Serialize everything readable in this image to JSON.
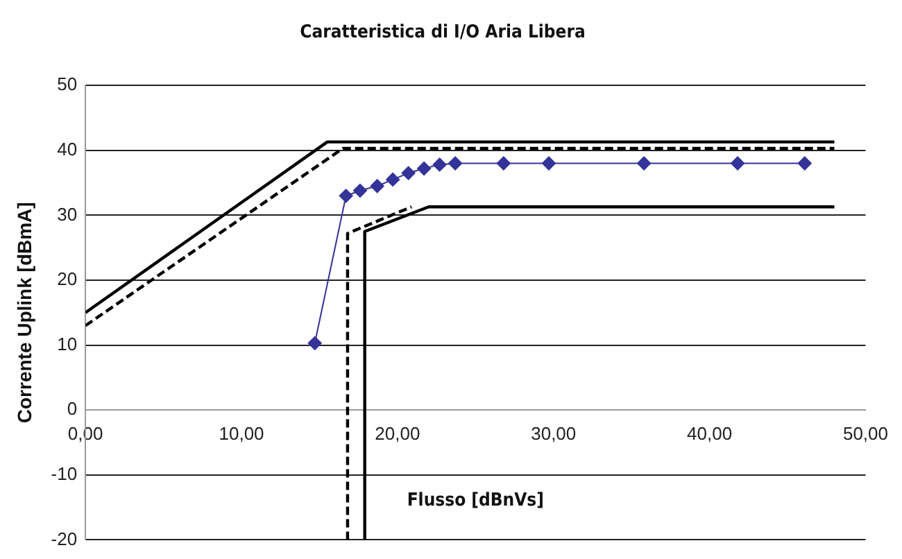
{
  "chart_data": {
    "type": "line",
    "title": "Caratteristica di I/O Aria Libera",
    "xlabel": "Flusso [dBnVs]",
    "ylabel": "Corrente Uplink [dBmA]",
    "xlim": [
      0,
      50
    ],
    "xticks": [
      {
        "value": 0,
        "label": "0,00"
      },
      {
        "value": 10,
        "label": "10,00"
      },
      {
        "value": 20,
        "label": "20,00"
      },
      {
        "value": 30,
        "label": "30,00"
      },
      {
        "value": 40,
        "label": "40,00"
      },
      {
        "value": 50,
        "label": "50,00"
      }
    ],
    "ylim": [
      -20,
      50
    ],
    "yticks": [
      -20,
      -10,
      0,
      10,
      20,
      30,
      40,
      50
    ],
    "grid": "y",
    "legend": false,
    "series": [
      {
        "color": "#333399",
        "marker": "diamond",
        "line_style": "solid",
        "x": [
          14.7,
          16.7,
          17.6,
          18.7,
          19.7,
          20.7,
          21.7,
          22.7,
          23.7,
          26.8,
          29.7,
          35.8,
          41.8,
          46.1
        ],
        "values": [
          10.3,
          33,
          33.8,
          34.5,
          35.5,
          36.5,
          37.2,
          37.8,
          38,
          38,
          38,
          38,
          38,
          38
        ]
      },
      {
        "color": "#000000",
        "marker": "none",
        "line_style": "solid",
        "x": [
          0,
          15.5,
          48
        ],
        "values": [
          15,
          41.3,
          41.3
        ]
      },
      {
        "color": "#000000",
        "marker": "none",
        "line_style": "dashed",
        "x": [
          0,
          16.5,
          48
        ],
        "values": [
          13,
          40.3,
          40.3
        ]
      },
      {
        "color": "#000000",
        "marker": "none",
        "line_style": "solid",
        "x": [
          17.9,
          17.9,
          22,
          48
        ],
        "values": [
          -20,
          27.5,
          31.3,
          31.3
        ]
      },
      {
        "color": "#000000",
        "marker": "none",
        "line_style": "dashed",
        "x": [
          16.8,
          16.8,
          20.9
        ],
        "values": [
          -20,
          27.2,
          31.3
        ]
      }
    ]
  }
}
